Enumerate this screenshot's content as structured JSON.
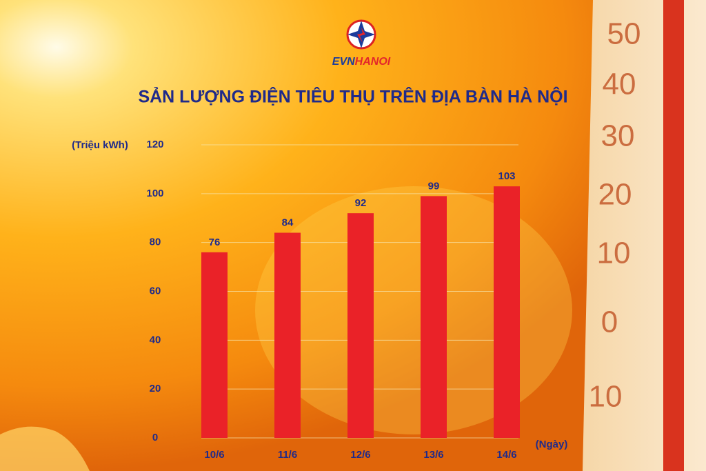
{
  "logo": {
    "evn": "EVN",
    "hanoi": "HANOI"
  },
  "background": {
    "thermometer_marks": [
      "50",
      "40",
      "30",
      "20",
      "10",
      "0",
      "10"
    ]
  },
  "chart_data": {
    "type": "bar",
    "title": "SẢN LƯỢNG ĐIỆN TIÊU THỤ TRÊN ĐỊA BÀN HÀ NỘI",
    "y_label": "(Triệu kWh)",
    "x_label": "(Ngày)",
    "categories": [
      "10/6",
      "11/6",
      "12/6",
      "13/6",
      "14/6"
    ],
    "values": [
      76,
      84,
      92,
      99,
      103
    ],
    "color": "#ea2228",
    "ylim": [
      0,
      120
    ],
    "yticks": [
      0,
      20,
      40,
      60,
      80,
      100,
      120
    ],
    "grid": true
  }
}
